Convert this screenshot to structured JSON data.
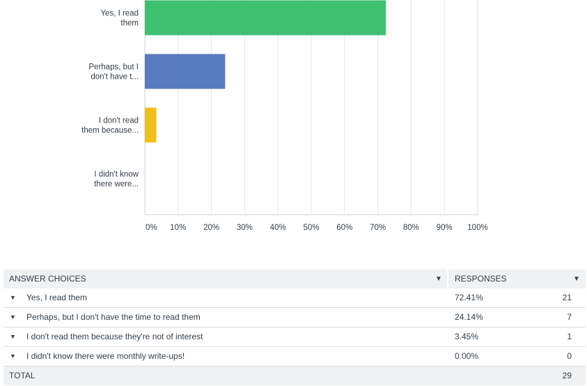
{
  "chart_data": {
    "type": "bar",
    "orientation": "horizontal",
    "categories": [
      [
        "Yes, I read",
        "them"
      ],
      [
        "Perhaps, but I",
        "don't have t..."
      ],
      [
        "I don't read",
        "them because..."
      ],
      [
        "I didn't know",
        "there were..."
      ]
    ],
    "values": [
      72.41,
      24.14,
      3.45,
      0
    ],
    "colors": [
      "#3ec070",
      "#5a7bbd",
      "#f2bf1a",
      "#e5484d"
    ],
    "xlim": [
      0,
      100
    ],
    "xticks": [
      "0%",
      "10%",
      "20%",
      "30%",
      "40%",
      "50%",
      "60%",
      "70%",
      "80%",
      "90%",
      "100%"
    ],
    "grid": true,
    "title": "",
    "xlabel": "",
    "ylabel": ""
  },
  "table": {
    "header": {
      "answer_choices": "ANSWER CHOICES",
      "responses": "RESPONSES"
    },
    "rows": [
      {
        "answer": "Yes, I read them",
        "percent": "72.41%",
        "count": "21"
      },
      {
        "answer": "Perhaps, but I don't have the time to read them",
        "percent": "24.14%",
        "count": "7"
      },
      {
        "answer": "I don't read them because they're not of interest",
        "percent": "3.45%",
        "count": "1"
      },
      {
        "answer": "I didn't know there were monthly write-ups!",
        "percent": "0.00%",
        "count": "0"
      }
    ],
    "total": {
      "label": "TOTAL",
      "count": "29"
    }
  },
  "icons": {
    "sort": "caret-down-icon",
    "row_expand": "caret-down-icon"
  }
}
